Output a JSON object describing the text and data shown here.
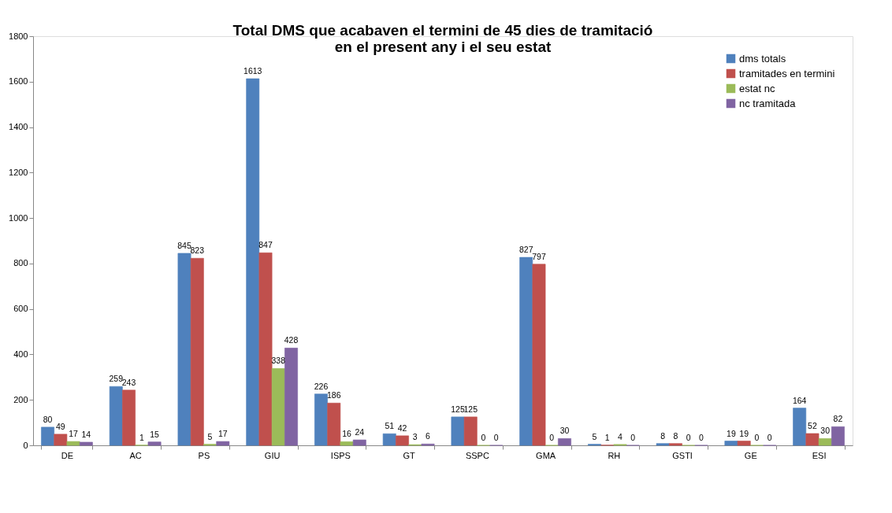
{
  "chart_data": {
    "type": "bar",
    "title": "Total DMS que acabaven el termini de 45 dies de tramitació\nen el present any i el seu estat",
    "categories": [
      "DE",
      "AC",
      "PS",
      "GIU",
      "ISPS",
      "GT",
      "SSPC",
      "GMA",
      "RH",
      "GSTI",
      "GE",
      "ESI"
    ],
    "series": [
      {
        "name": "dms totals",
        "color": "#4f81bd",
        "values": [
          80,
          259,
          845,
          1613,
          226,
          51,
          125,
          827,
          5,
          8,
          19,
          164
        ]
      },
      {
        "name": "tramitades en termini",
        "color": "#c0504d",
        "values": [
          49,
          243,
          823,
          847,
          186,
          42,
          125,
          797,
          1,
          8,
          19,
          52
        ]
      },
      {
        "name": "estat nc",
        "color": "#9bbb59",
        "values": [
          17,
          1,
          5,
          338,
          16,
          3,
          0,
          0,
          4,
          0,
          0,
          30
        ]
      },
      {
        "name": "nc tramitada",
        "color": "#8064a2",
        "values": [
          14,
          15,
          17,
          428,
          24,
          6,
          0,
          30,
          0,
          0,
          0,
          82
        ]
      }
    ],
    "ylim": [
      0,
      1800
    ],
    "yticks": [
      0,
      200,
      400,
      600,
      800,
      1000,
      1200,
      1400,
      1600,
      1800
    ],
    "data_labels": true,
    "legend": "top right",
    "grid": false
  }
}
